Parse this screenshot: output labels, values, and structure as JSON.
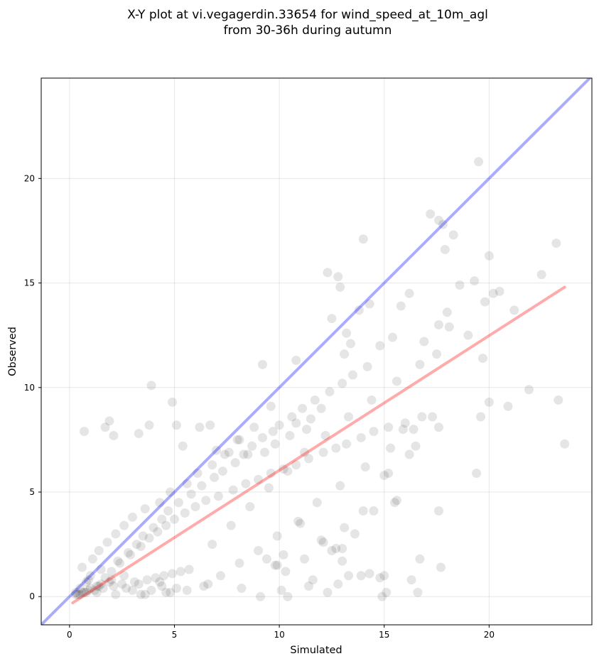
{
  "chart_data": {
    "type": "scatter",
    "title": [
      "X-Y plot at vi.vegagerdin.33654 for wind_speed_at_10m_agl",
      "from 30-36h during autumn"
    ],
    "xlabel": "Simulated",
    "ylabel": "Observed",
    "xlim": [
      -1.35,
      24.9
    ],
    "ylim": [
      -1.35,
      24.8
    ],
    "xticks": [
      0,
      5,
      10,
      15,
      20
    ],
    "yticks": [
      0,
      5,
      10,
      15,
      20
    ],
    "grid": true,
    "colors": {
      "points": "#000000",
      "identity_line": "#0000ff",
      "fit_line": "#ff0000",
      "grid": "#b0b0b0"
    },
    "lines": [
      {
        "kind": "identity",
        "x": [
          -1.35,
          24.9
        ],
        "y": [
          -1.35,
          24.9
        ]
      },
      {
        "kind": "fit",
        "x": [
          0.15,
          23.6
        ],
        "y": [
          -0.3,
          14.8
        ]
      }
    ],
    "points": {
      "x": [
        19.5,
        23.2,
        17.6,
        17.2,
        17.8,
        17.9,
        18.3,
        20.0,
        22.5,
        19.3,
        20.2,
        19.8,
        18.6,
        18.0,
        17.6,
        14.0,
        12.3,
        12.8,
        12.9,
        13.8,
        12.5,
        13.2,
        14.3,
        15.8,
        16.2,
        15.4,
        14.8,
        16.9,
        17.5,
        18.1,
        19.0,
        20.5,
        21.2,
        21.9,
        20.0,
        19.7,
        23.3,
        23.6,
        20.9,
        19.6,
        17.6,
        17.3,
        16.5,
        16.2,
        15.2,
        15.0,
        15.6,
        17.6,
        19.4,
        16.7,
        16.6,
        17.7,
        16.3,
        15.0,
        14.8,
        14.0,
        13.1,
        12.7,
        12.0,
        13.0,
        13.3,
        11.2,
        9.9,
        10.3,
        11.6,
        6.6,
        8.2,
        9.1,
        10.1,
        10.4,
        13.9,
        14.9,
        11.4,
        12.3,
        12.8,
        14.3,
        15.1,
        13.0,
        13.6,
        10.2,
        9.8,
        12.1,
        12.5,
        11.0,
        9.4,
        14.5,
        15.5,
        15.9,
        10.8,
        13.1,
        13.4,
        9.2,
        1.9,
        0.7,
        1.7,
        2.1,
        3.3,
        3.8,
        3.9,
        4.9,
        5.1,
        5.4,
        6.2,
        6.7,
        7.0,
        7.6,
        8.0,
        8.5,
        9.3,
        9.8,
        10.5,
        11.3,
        12.0,
        11.5,
        10.8,
        9.6,
        8.8,
        8.1,
        7.4,
        6.8,
        6.1,
        5.6,
        4.8,
        4.3,
        3.6,
        3.0,
        2.6,
        2.2,
        1.8,
        1.4,
        1.1,
        0.6,
        0.9,
        1.3,
        1.7,
        2.0,
        2.4,
        2.9,
        3.4,
        3.8,
        4.2,
        4.6,
        5.0,
        5.5,
        6.0,
        6.5,
        7.1,
        7.8,
        8.4,
        9.0,
        9.6,
        10.2,
        10.8,
        11.4,
        12.1,
        12.7,
        13.2,
        13.9,
        14.5,
        15.2,
        16.0,
        16.8,
        0.3,
        0.5,
        0.8,
        1.0,
        1.5,
        2.3,
        2.8,
        3.2,
        3.5,
        4.0,
        4.4,
        4.7,
        5.2,
        5.8,
        6.3,
        6.9,
        7.3,
        7.9,
        8.3,
        8.7,
        9.2,
        9.7,
        10.0,
        10.6,
        11.1,
        11.7,
        12.4,
        13.0,
        13.5,
        14.2,
        0.4,
        0.7,
        1.2,
        1.6,
        2.1,
        2.5,
        3.1,
        3.7,
        4.1,
        4.5,
        4.9,
        5.3,
        5.7,
        0.5,
        0.9,
        1.4,
        1.9,
        2.7,
        3.3,
        3.9,
        4.4,
        4.8,
        5.1,
        0.6,
        1.0,
        1.5,
        2.0,
        2.6,
        3.0,
        3.6,
        4.3,
        0.3,
        0.8,
        1.3,
        2.2,
        3.4,
        4.6,
        5.6,
        6.4,
        7.2,
        8.1,
        9.0,
        9.9,
        10.9,
        11.8,
        12.9,
        14.1,
        15.3,
        16.4,
        6.8,
        7.7,
        8.6,
        9.5,
        10.4,
        11.2,
        12.2,
        13.3,
        14.4,
        15.6,
        16.7
      ],
      "y": [
        20.8,
        16.9,
        18.0,
        18.3,
        17.8,
        16.6,
        17.3,
        16.3,
        15.4,
        15.1,
        14.5,
        14.1,
        14.9,
        13.6,
        13.0,
        17.1,
        15.5,
        15.3,
        14.8,
        13.7,
        13.3,
        12.6,
        14.0,
        13.9,
        14.5,
        12.4,
        12.0,
        12.2,
        11.6,
        12.9,
        12.5,
        14.6,
        13.7,
        9.9,
        9.3,
        11.4,
        9.4,
        7.3,
        9.1,
        8.6,
        8.1,
        8.6,
        7.2,
        6.8,
        5.9,
        5.8,
        4.6,
        4.1,
        5.9,
        1.8,
        0.2,
        1.4,
        0.8,
        1.0,
        0.9,
        4.1,
        3.3,
        2.3,
        2.7,
        1.7,
        1.0,
        1.8,
        1.5,
        1.2,
        0.8,
        0.6,
        0.4,
        0.0,
        0.3,
        0.0,
        1.0,
        0.0,
        0.5,
        0.2,
        0.6,
        1.1,
        0.2,
        2.3,
        3.0,
        2.0,
        1.5,
        2.6,
        2.2,
        3.5,
        1.8,
        4.1,
        4.5,
        8.0,
        11.3,
        11.6,
        12.1,
        11.1,
        8.4,
        7.9,
        8.1,
        7.7,
        7.8,
        8.2,
        10.1,
        9.3,
        8.2,
        7.2,
        8.1,
        8.2,
        7.0,
        6.9,
        7.5,
        6.8,
        6.9,
        7.3,
        7.7,
        8.0,
        9.0,
        8.5,
        8.3,
        9.1,
        8.1,
        7.5,
        6.8,
        6.3,
        5.9,
        5.4,
        5.0,
        4.5,
        4.2,
        3.8,
        3.4,
        3.0,
        2.6,
        2.2,
        1.8,
        1.4,
        0.8,
        0.5,
        0.9,
        1.2,
        1.6,
        2.0,
        2.4,
        2.8,
        3.1,
        3.4,
        3.7,
        4.0,
        4.3,
        4.6,
        4.8,
        5.1,
        5.4,
        5.6,
        5.9,
        6.1,
        6.3,
        6.6,
        6.9,
        7.1,
        7.3,
        7.6,
        7.9,
        8.1,
        8.3,
        8.6,
        0.2,
        0.4,
        0.7,
        1.0,
        1.3,
        1.7,
        2.1,
        2.5,
        2.9,
        3.3,
        3.7,
        4.1,
        4.5,
        4.9,
        5.3,
        5.7,
        6.0,
        6.4,
        6.8,
        7.2,
        7.6,
        7.9,
        8.2,
        8.6,
        9.0,
        9.4,
        9.8,
        10.2,
        10.6,
        11.0,
        0.1,
        0.2,
        0.3,
        0.4,
        0.5,
        0.6,
        0.7,
        0.8,
        0.9,
        1.0,
        1.1,
        1.2,
        1.3,
        0.1,
        0.3,
        0.5,
        0.7,
        0.4,
        0.6,
        0.3,
        0.5,
        0.2,
        0.4,
        0.2,
        0.4,
        0.6,
        0.8,
        1.0,
        0.3,
        0.1,
        0.7,
        0.1,
        0.2,
        0.2,
        0.1,
        0.1,
        0.2,
        0.3,
        0.5,
        1.0,
        1.6,
        2.2,
        2.9,
        3.6,
        4.5,
        5.3,
        6.2,
        7.1,
        8.0,
        2.5,
        3.4,
        4.3,
        5.2,
        6.0,
        6.9,
        7.7,
        8.6,
        9.4,
        10.3,
        11.1
      ]
    }
  }
}
